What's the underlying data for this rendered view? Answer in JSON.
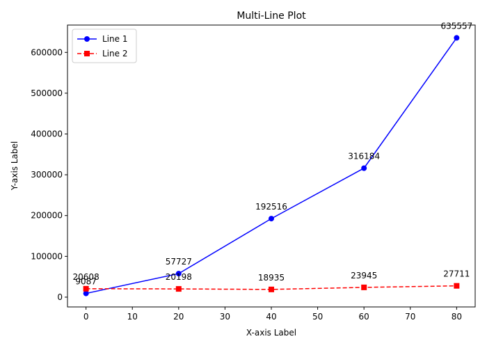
{
  "chart_data": {
    "type": "line",
    "title": "Multi-Line Plot",
    "xlabel": "X-axis Label",
    "ylabel": "Y-axis Label",
    "x": [
      0,
      20,
      40,
      60,
      80
    ],
    "xlim": [
      -4,
      84
    ],
    "ylim": [
      -24000,
      667000
    ],
    "xticks": [
      0,
      10,
      20,
      30,
      40,
      50,
      60,
      70,
      80
    ],
    "yticks": [
      0,
      100000,
      200000,
      300000,
      400000,
      500000,
      600000
    ],
    "grid": false,
    "legend_position": "top-left",
    "series": [
      {
        "name": "Line 1",
        "values": [
          9087,
          57727,
          192516,
          316184,
          635557
        ],
        "color": "#0000ff",
        "marker": "circle",
        "linestyle": "solid"
      },
      {
        "name": "Line 2",
        "values": [
          20608,
          20198,
          18935,
          23945,
          27711
        ],
        "color": "#ff0000",
        "marker": "square",
        "linestyle": "dashed"
      }
    ]
  }
}
